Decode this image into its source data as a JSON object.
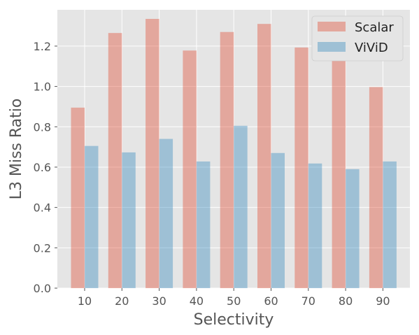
{
  "chart_data": {
    "type": "bar",
    "title": "",
    "xlabel": "Selectivity",
    "ylabel": "L3 Miss Ratio",
    "categories": [
      "10",
      "20",
      "30",
      "40",
      "50",
      "60",
      "70",
      "80",
      "90"
    ],
    "series": [
      {
        "name": "Scalar",
        "color": "#E24A33",
        "values": [
          0.895,
          1.265,
          1.335,
          1.178,
          1.27,
          1.31,
          1.193,
          1.148,
          0.997
        ]
      },
      {
        "name": "ViViD",
        "color": "#348ABD",
        "values": [
          0.705,
          0.673,
          0.74,
          0.628,
          0.805,
          0.67,
          0.618,
          0.59,
          0.628
        ]
      }
    ],
    "ylim": [
      0,
      1.38
    ],
    "yticks": [
      "0.0",
      "0.2",
      "0.4",
      "0.6",
      "0.8",
      "1.0",
      "1.2"
    ],
    "grid": true,
    "legend_position": "top-right",
    "style": "ggplot",
    "bar_alpha": 0.4
  }
}
